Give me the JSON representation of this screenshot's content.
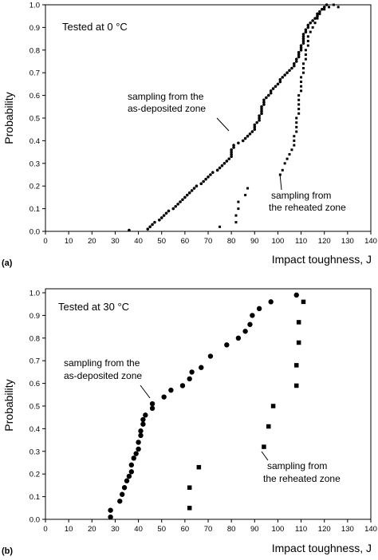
{
  "chart_data": [
    {
      "type": "scatter",
      "panel_label": "(a)",
      "title_annotation": "Tested at 0 °C",
      "xlabel": "Impact toughness, J",
      "ylabel": "Probability",
      "xlim": [
        0,
        140
      ],
      "ylim": [
        0,
        1.0
      ],
      "x_ticks": [
        "0",
        "10",
        "20",
        "30",
        "40",
        "50",
        "60",
        "70",
        "80",
        "90",
        "100",
        "110",
        "120",
        "130",
        "140"
      ],
      "y_ticks": [
        "0.0",
        "0.1",
        "0.2",
        "0.3",
        "0.4",
        "0.5",
        "0.6",
        "0.7",
        "0.8",
        "0.9",
        "1.0"
      ],
      "annotations": [
        {
          "lines": [
            "sampling from the",
            "as-deposited zone"
          ]
        },
        {
          "lines": [
            "sampling from",
            "the reheated zone"
          ]
        }
      ],
      "series": [
        {
          "marker": "dot",
          "points": [
            [
              36,
              0.005
            ],
            [
              44,
              0.01
            ],
            [
              45,
              0.02
            ],
            [
              46,
              0.03
            ],
            [
              47,
              0.04
            ],
            [
              49,
              0.05
            ],
            [
              50,
              0.06
            ],
            [
              51,
              0.07
            ],
            [
              52,
              0.08
            ],
            [
              53,
              0.09
            ],
            [
              55,
              0.1
            ],
            [
              56,
              0.11
            ],
            [
              57,
              0.12
            ],
            [
              58,
              0.13
            ],
            [
              59,
              0.14
            ],
            [
              60,
              0.15
            ],
            [
              61,
              0.16
            ],
            [
              62,
              0.17
            ],
            [
              63,
              0.18
            ],
            [
              64,
              0.19
            ],
            [
              65,
              0.2
            ],
            [
              67,
              0.21
            ],
            [
              68,
              0.22
            ],
            [
              69,
              0.23
            ],
            [
              70,
              0.24
            ],
            [
              71,
              0.25
            ],
            [
              72,
              0.26
            ],
            [
              74,
              0.27
            ],
            [
              75,
              0.28
            ],
            [
              76,
              0.29
            ],
            [
              77,
              0.3
            ],
            [
              78,
              0.31
            ],
            [
              79,
              0.32
            ],
            [
              80,
              0.33
            ],
            [
              80,
              0.34
            ],
            [
              80,
              0.35
            ],
            [
              80,
              0.36
            ],
            [
              81,
              0.37
            ],
            [
              81,
              0.38
            ],
            [
              83,
              0.39
            ],
            [
              85,
              0.4
            ],
            [
              86,
              0.41
            ],
            [
              87,
              0.42
            ],
            [
              88,
              0.43
            ],
            [
              89,
              0.44
            ],
            [
              90,
              0.45
            ],
            [
              90,
              0.46
            ],
            [
              90,
              0.47
            ],
            [
              91,
              0.48
            ],
            [
              92,
              0.49
            ],
            [
              92,
              0.5
            ],
            [
              92,
              0.51
            ],
            [
              93,
              0.52
            ],
            [
              93,
              0.53
            ],
            [
              93,
              0.54
            ],
            [
              93,
              0.55
            ],
            [
              94,
              0.56
            ],
            [
              94,
              0.57
            ],
            [
              94,
              0.58
            ],
            [
              95,
              0.59
            ],
            [
              96,
              0.6
            ],
            [
              97,
              0.61
            ],
            [
              97,
              0.62
            ],
            [
              98,
              0.63
            ],
            [
              99,
              0.64
            ],
            [
              100,
              0.65
            ],
            [
              101,
              0.66
            ],
            [
              101,
              0.67
            ],
            [
              102,
              0.68
            ],
            [
              103,
              0.69
            ],
            [
              104,
              0.7
            ],
            [
              105,
              0.71
            ],
            [
              106,
              0.72
            ],
            [
              107,
              0.73
            ],
            [
              107,
              0.74
            ],
            [
              108,
              0.75
            ],
            [
              108,
              0.76
            ],
            [
              109,
              0.77
            ],
            [
              109,
              0.78
            ],
            [
              109,
              0.79
            ],
            [
              110,
              0.8
            ],
            [
              110,
              0.81
            ],
            [
              110,
              0.82
            ],
            [
              111,
              0.83
            ],
            [
              111,
              0.84
            ],
            [
              111,
              0.85
            ],
            [
              111,
              0.86
            ],
            [
              111,
              0.87
            ],
            [
              112,
              0.88
            ],
            [
              112,
              0.89
            ],
            [
              113,
              0.9
            ],
            [
              113,
              0.91
            ],
            [
              114,
              0.92
            ],
            [
              115,
              0.93
            ],
            [
              116,
              0.94
            ],
            [
              117,
              0.95
            ],
            [
              117,
              0.96
            ],
            [
              118,
              0.97
            ],
            [
              119,
              0.98
            ],
            [
              120,
              0.99
            ],
            [
              121,
              1.0
            ]
          ]
        },
        {
          "marker": "square",
          "points": [
            [
              75,
              0.02
            ],
            [
              82,
              0.04
            ],
            [
              82,
              0.07
            ],
            [
              83,
              0.1
            ],
            [
              83,
              0.13
            ],
            [
              86,
              0.16
            ],
            [
              87,
              0.19
            ],
            [
              101,
              0.25
            ],
            [
              102,
              0.27
            ],
            [
              103,
              0.3
            ],
            [
              104,
              0.32
            ],
            [
              105,
              0.34
            ],
            [
              106,
              0.36
            ],
            [
              107,
              0.38
            ],
            [
              107,
              0.4
            ],
            [
              107,
              0.42
            ],
            [
              108,
              0.44
            ],
            [
              108,
              0.46
            ],
            [
              108,
              0.48
            ],
            [
              108,
              0.5
            ],
            [
              109,
              0.52
            ],
            [
              109,
              0.54
            ],
            [
              109,
              0.56
            ],
            [
              109,
              0.58
            ],
            [
              109,
              0.6
            ],
            [
              110,
              0.62
            ],
            [
              110,
              0.64
            ],
            [
              110,
              0.66
            ],
            [
              110,
              0.68
            ],
            [
              111,
              0.7
            ],
            [
              111,
              0.72
            ],
            [
              111,
              0.74
            ],
            [
              112,
              0.76
            ],
            [
              112,
              0.78
            ],
            [
              112,
              0.8
            ],
            [
              113,
              0.82
            ],
            [
              113,
              0.84
            ],
            [
              113,
              0.86
            ],
            [
              114,
              0.88
            ],
            [
              115,
              0.9
            ],
            [
              116,
              0.92
            ],
            [
              117,
              0.94
            ],
            [
              118,
              0.96
            ],
            [
              120,
              0.98
            ],
            [
              122,
              0.99
            ],
            [
              124,
              1.0
            ],
            [
              126,
              0.99
            ]
          ]
        }
      ]
    },
    {
      "type": "scatter",
      "panel_label": "(b)",
      "title_annotation": "Tested at 30 °C",
      "xlabel": "Impact toughness, J",
      "ylabel": "Probability",
      "xlim": [
        0,
        140
      ],
      "ylim": [
        0,
        1.0
      ],
      "x_ticks": [
        "0",
        "10",
        "20",
        "30",
        "40",
        "50",
        "60",
        "70",
        "80",
        "90",
        "100",
        "110",
        "120",
        "130",
        "140"
      ],
      "y_ticks": [
        "0.0",
        "0.1",
        "0.2",
        "0.3",
        "0.4",
        "0.5",
        "0.6",
        "0.7",
        "0.8",
        "0.9",
        "1.0"
      ],
      "annotations": [
        {
          "lines": [
            "sampling from the",
            "as-deposited zone"
          ]
        },
        {
          "lines": [
            "sampling from",
            "the reheated  zone"
          ]
        }
      ],
      "series": [
        {
          "marker": "dot",
          "points": [
            [
              28,
              0.01
            ],
            [
              28,
              0.04
            ],
            [
              32,
              0.08
            ],
            [
              33,
              0.11
            ],
            [
              34,
              0.14
            ],
            [
              35,
              0.17
            ],
            [
              36,
              0.19
            ],
            [
              37,
              0.21
            ],
            [
              37,
              0.24
            ],
            [
              38,
              0.27
            ],
            [
              39,
              0.29
            ],
            [
              40,
              0.31
            ],
            [
              40,
              0.34
            ],
            [
              41,
              0.37
            ],
            [
              41,
              0.39
            ],
            [
              42,
              0.42
            ],
            [
              42,
              0.44
            ],
            [
              43,
              0.46
            ],
            [
              46,
              0.49
            ],
            [
              46,
              0.51
            ],
            [
              51,
              0.54
            ],
            [
              54,
              0.57
            ],
            [
              59,
              0.59
            ],
            [
              62,
              0.62
            ],
            [
              63,
              0.65
            ],
            [
              67,
              0.67
            ],
            [
              71,
              0.72
            ],
            [
              78,
              0.77
            ],
            [
              83,
              0.8
            ],
            [
              86,
              0.83
            ],
            [
              88,
              0.86
            ],
            [
              89,
              0.9
            ],
            [
              92,
              0.93
            ],
            [
              97,
              0.96
            ],
            [
              108,
              0.99
            ]
          ]
        },
        {
          "marker": "square",
          "points": [
            [
              62,
              0.05
            ],
            [
              62,
              0.14
            ],
            [
              66,
              0.23
            ],
            [
              94,
              0.32
            ],
            [
              96,
              0.41
            ],
            [
              98,
              0.5
            ],
            [
              108,
              0.59
            ],
            [
              108,
              0.68
            ],
            [
              109,
              0.78
            ],
            [
              109,
              0.87
            ],
            [
              111,
              0.96
            ]
          ]
        }
      ]
    }
  ]
}
